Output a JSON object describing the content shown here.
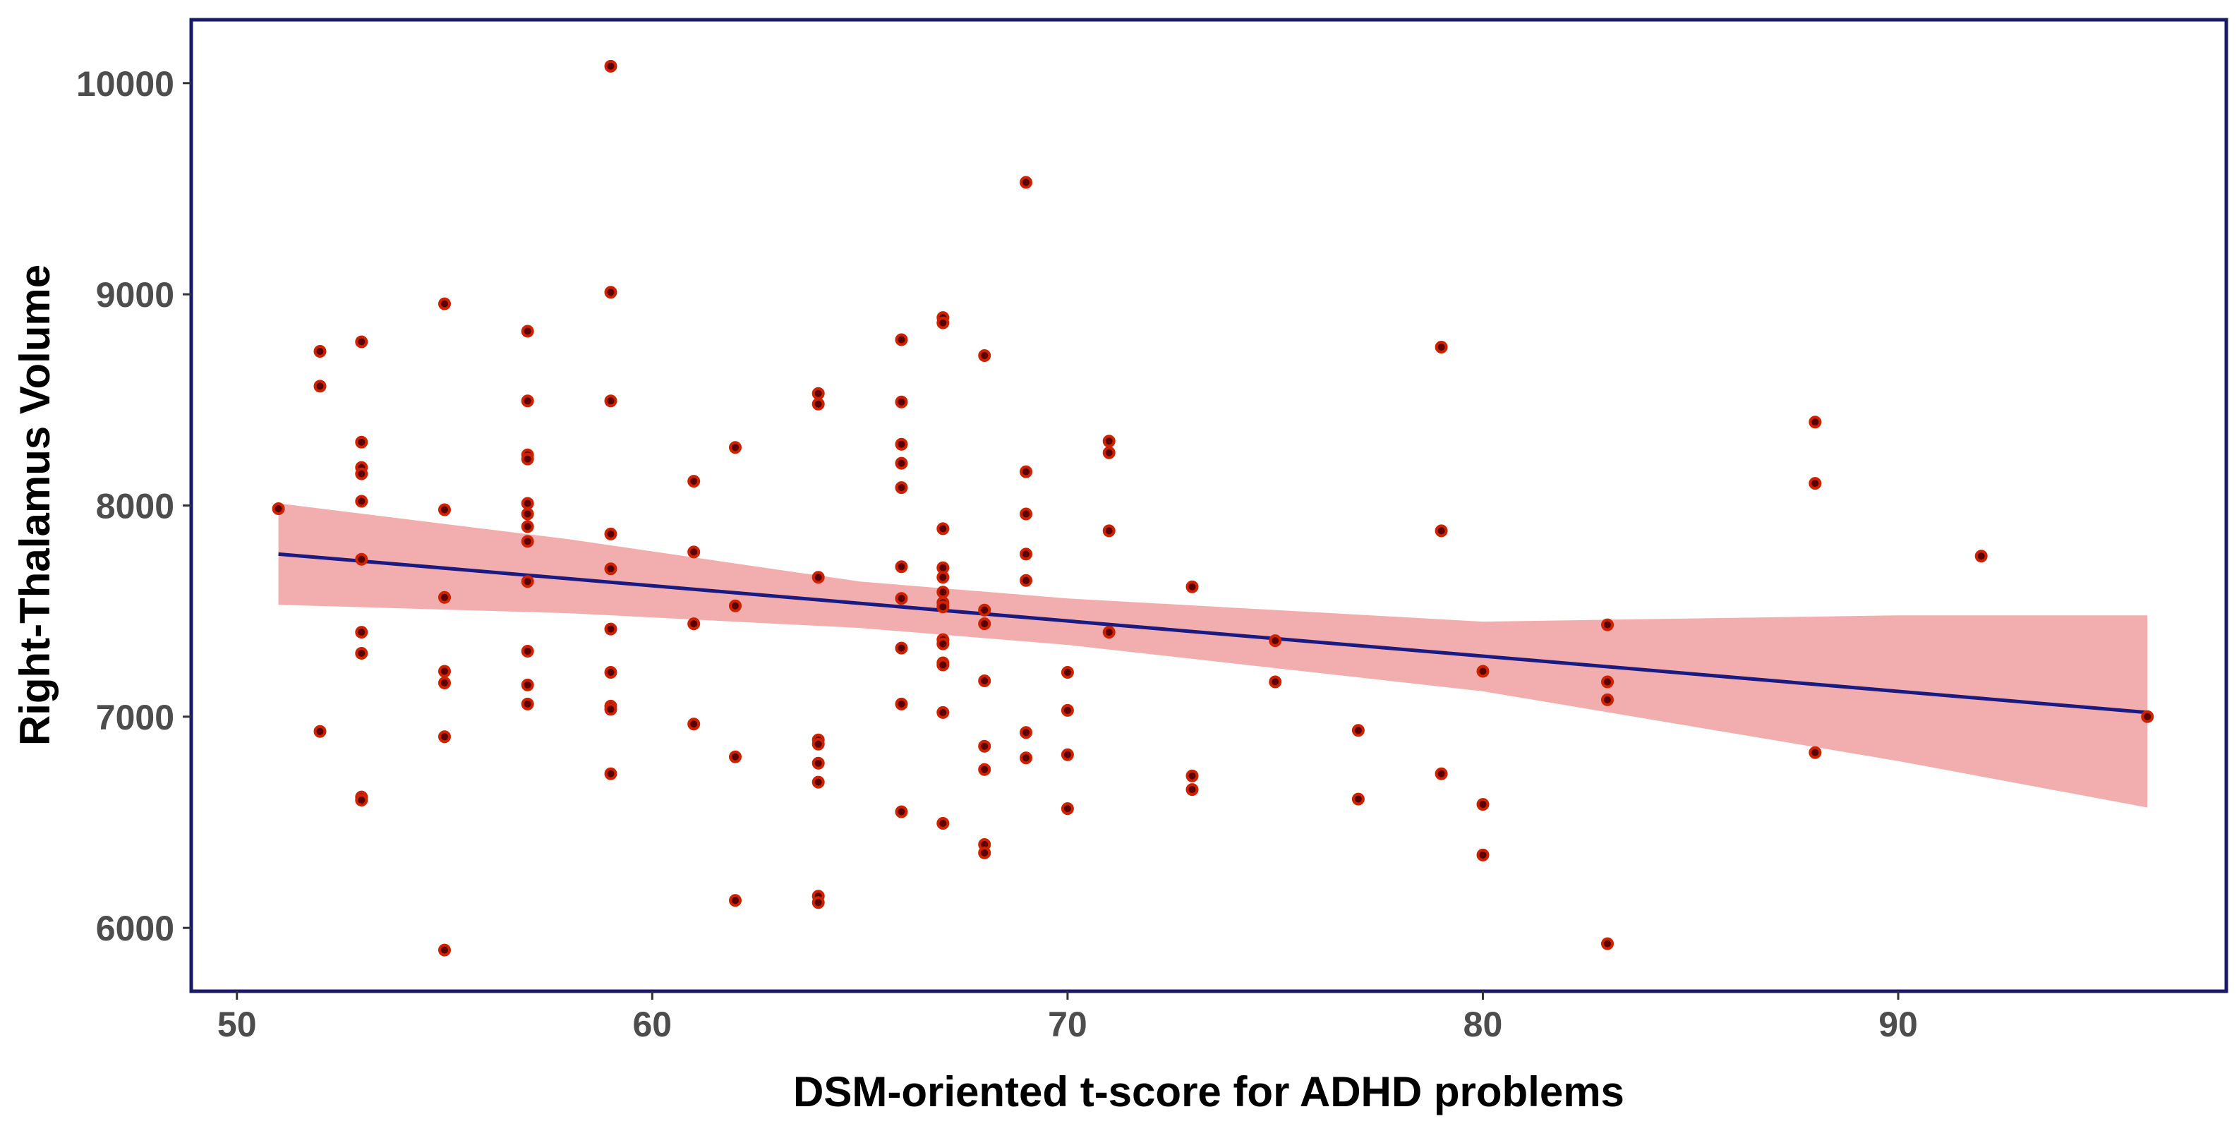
{
  "colors": {
    "point_stroke": "#cc2200",
    "point_fill": "#5a0000",
    "line": "#1a1a80",
    "band": "#f2aeae",
    "frame": "#1a1a66",
    "tick_text": "#4d4d4d"
  },
  "chart_data": {
    "type": "scatter",
    "title": "",
    "xlabel": "DSM-oriented t-score for ADHD problems",
    "ylabel": "Right-Thalamus Volume",
    "xlim": [
      48.9,
      97.9
    ],
    "ylim": [
      5700,
      10300
    ],
    "xticks": [
      50,
      60,
      70,
      80,
      90
    ],
    "yticks": [
      6000,
      7000,
      8000,
      9000,
      10000
    ],
    "xtick_labels": [
      "50",
      "60",
      "70",
      "80",
      "90"
    ],
    "ytick_labels": [
      "6000",
      "7000",
      "8000",
      "9000",
      "10000"
    ],
    "grid": false,
    "fit_line": {
      "x": [
        51,
        96
      ],
      "y": [
        7770,
        7020
      ]
    },
    "confidence_band": {
      "x": [
        51,
        58,
        65,
        70,
        80,
        90,
        96
      ],
      "lower": [
        7530,
        7490,
        7420,
        7340,
        7120,
        6790,
        6570
      ],
      "upper": [
        8010,
        7840,
        7640,
        7560,
        7450,
        7480,
        7480
      ]
    },
    "points": [
      [
        51,
        7985
      ],
      [
        52,
        8730
      ],
      [
        52,
        8565
      ],
      [
        52,
        6930
      ],
      [
        53,
        8775
      ],
      [
        53,
        8300
      ],
      [
        53,
        8180
      ],
      [
        53,
        8150
      ],
      [
        53,
        8020
      ],
      [
        53,
        7745
      ],
      [
        53,
        7400
      ],
      [
        53,
        7300
      ],
      [
        53,
        6620
      ],
      [
        53,
        6605
      ],
      [
        55,
        8955
      ],
      [
        55,
        7980
      ],
      [
        55,
        7565
      ],
      [
        55,
        7215
      ],
      [
        55,
        7160
      ],
      [
        55,
        6905
      ],
      [
        55,
        5895
      ],
      [
        57,
        8825
      ],
      [
        57,
        8495
      ],
      [
        57,
        8240
      ],
      [
        57,
        8220
      ],
      [
        57,
        8010
      ],
      [
        57,
        7960
      ],
      [
        57,
        7900
      ],
      [
        57,
        7830
      ],
      [
        57,
        7640
      ],
      [
        57,
        7310
      ],
      [
        57,
        7150
      ],
      [
        57,
        7060
      ],
      [
        59,
        10080
      ],
      [
        59,
        9010
      ],
      [
        59,
        8495
      ],
      [
        59,
        7865
      ],
      [
        59,
        7700
      ],
      [
        59,
        7415
      ],
      [
        59,
        7210
      ],
      [
        59,
        7050
      ],
      [
        59,
        7035
      ],
      [
        59,
        6730
      ],
      [
        61,
        8115
      ],
      [
        61,
        7780
      ],
      [
        61,
        7440
      ],
      [
        61,
        6965
      ],
      [
        62,
        8275
      ],
      [
        62,
        7525
      ],
      [
        62,
        6810
      ],
      [
        62,
        6130
      ],
      [
        64,
        8530
      ],
      [
        64,
        8480
      ],
      [
        64,
        7660
      ],
      [
        64,
        6890
      ],
      [
        64,
        6870
      ],
      [
        64,
        6780
      ],
      [
        64,
        6690
      ],
      [
        64,
        6150
      ],
      [
        64,
        6120
      ],
      [
        66,
        8785
      ],
      [
        66,
        8490
      ],
      [
        66,
        8290
      ],
      [
        66,
        8200
      ],
      [
        66,
        8085
      ],
      [
        66,
        7710
      ],
      [
        66,
        7560
      ],
      [
        66,
        7325
      ],
      [
        66,
        7060
      ],
      [
        66,
        6550
      ],
      [
        67,
        8890
      ],
      [
        67,
        8865
      ],
      [
        67,
        7890
      ],
      [
        67,
        7705
      ],
      [
        67,
        7660
      ],
      [
        67,
        7590
      ],
      [
        67,
        7540
      ],
      [
        67,
        7520
      ],
      [
        67,
        7365
      ],
      [
        67,
        7345
      ],
      [
        67,
        7255
      ],
      [
        67,
        7245
      ],
      [
        67,
        7020
      ],
      [
        67,
        6495
      ],
      [
        68,
        8710
      ],
      [
        68,
        7505
      ],
      [
        68,
        7440
      ],
      [
        68,
        7170
      ],
      [
        68,
        6860
      ],
      [
        68,
        6750
      ],
      [
        68,
        6395
      ],
      [
        68,
        6355
      ],
      [
        69,
        9530
      ],
      [
        69,
        8160
      ],
      [
        69,
        7960
      ],
      [
        69,
        7770
      ],
      [
        69,
        7645
      ],
      [
        69,
        6925
      ],
      [
        69,
        6805
      ],
      [
        70,
        7210
      ],
      [
        70,
        7030
      ],
      [
        70,
        6820
      ],
      [
        70,
        6565
      ],
      [
        71,
        8305
      ],
      [
        71,
        8250
      ],
      [
        71,
        7880
      ],
      [
        71,
        7400
      ],
      [
        73,
        7615
      ],
      [
        73,
        6720
      ],
      [
        73,
        6655
      ],
      [
        75,
        7360
      ],
      [
        75,
        7165
      ],
      [
        77,
        6935
      ],
      [
        77,
        6610
      ],
      [
        79,
        8750
      ],
      [
        79,
        7880
      ],
      [
        79,
        6730
      ],
      [
        80,
        7215
      ],
      [
        80,
        6585
      ],
      [
        80,
        6345
      ],
      [
        83,
        7435
      ],
      [
        83,
        7165
      ],
      [
        83,
        7080
      ],
      [
        83,
        5925
      ],
      [
        88,
        8395
      ],
      [
        88,
        8105
      ],
      [
        88,
        6830
      ],
      [
        92,
        7760
      ],
      [
        96,
        7000
      ]
    ]
  }
}
